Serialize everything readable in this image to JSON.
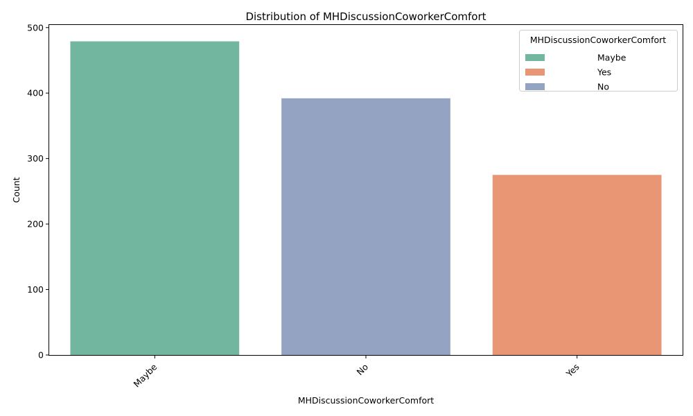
{
  "chart_data": {
    "type": "bar",
    "title": "Distribution of MHDiscussionCoworkerComfort",
    "xlabel": "MHDiscussionCoworkerComfort",
    "ylabel": "Count",
    "categories": [
      "Maybe",
      "No",
      "Yes"
    ],
    "values": [
      479,
      392,
      275
    ],
    "colors": [
      "#73b6a0",
      "#95a3c3",
      "#e99674"
    ],
    "ylim": [
      0,
      500
    ],
    "yticks": [
      0,
      100,
      200,
      300,
      400,
      500
    ],
    "grid": false,
    "legend": {
      "title": "MHDiscussionCoworkerComfort",
      "placement": "top-right",
      "entries": [
        {
          "label": "Maybe",
          "color": "#73b6a0"
        },
        {
          "label": "Yes",
          "color": "#e99674"
        },
        {
          "label": "No",
          "color": "#95a3c3"
        }
      ]
    }
  }
}
